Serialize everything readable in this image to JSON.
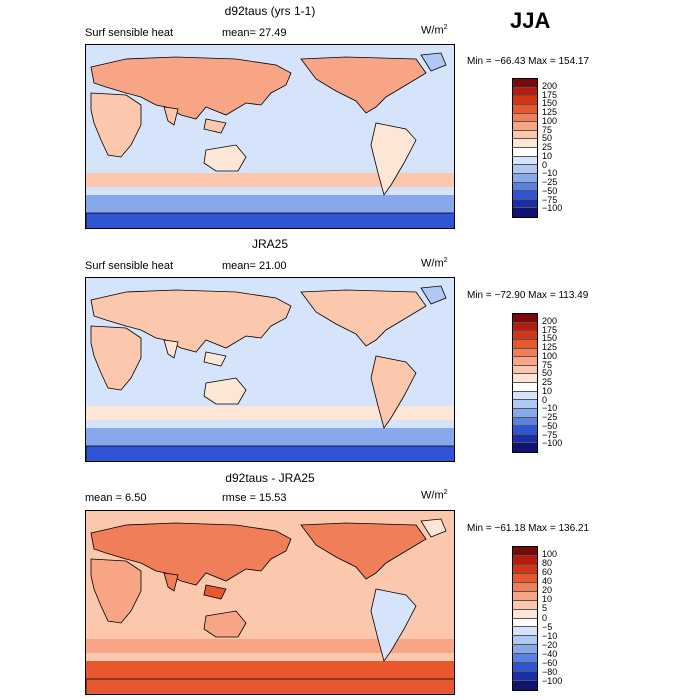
{
  "season": "JJA",
  "panels": [
    {
      "title": "d92taus (yrs 1-1)",
      "variable": "Surf sensible heat",
      "stat1": "mean=  27.49",
      "stat2": "",
      "units": "W/m",
      "units_exp": "2",
      "minmax": "Min = −66.43  Max = 154.17",
      "levels": [
        "200",
        "175",
        "150",
        "125",
        "100",
        "75",
        "50",
        "25",
        "10",
        "0",
        "−10",
        "−25",
        "−50",
        "−75",
        "−100"
      ],
      "colors": [
        "#7a0a0a",
        "#b81a0c",
        "#d53416",
        "#e8582e",
        "#f07e58",
        "#f7a585",
        "#fbc8ad",
        "#fde6d6",
        "#ffffff",
        "#d6e4fb",
        "#b0c8f2",
        "#87a8ea",
        "#5a80e0",
        "#2f55d4",
        "#1a2ea8",
        "#101470"
      ]
    },
    {
      "title": "JRA25",
      "variable": "Surf sensible heat",
      "stat1": "mean=  21.00",
      "stat2": "",
      "units": "W/m",
      "units_exp": "2",
      "minmax": "Min = −72.90  Max = 113.49",
      "levels": [
        "200",
        "175",
        "150",
        "125",
        "100",
        "75",
        "50",
        "25",
        "10",
        "0",
        "−10",
        "−25",
        "−50",
        "−75",
        "−100"
      ],
      "colors": [
        "#7a0a0a",
        "#b81a0c",
        "#d53416",
        "#e8582e",
        "#f07e58",
        "#f7a585",
        "#fbc8ad",
        "#fde6d6",
        "#ffffff",
        "#d6e4fb",
        "#b0c8f2",
        "#87a8ea",
        "#5a80e0",
        "#2f55d4",
        "#1a2ea8",
        "#101470"
      ]
    },
    {
      "title": "d92taus - JRA25",
      "variable": "",
      "stat1": "mean =   6.50",
      "stat2": "rmse =  15.53",
      "units": "W/m",
      "units_exp": "2",
      "minmax": "Min = −61.18  Max = 136.21",
      "levels": [
        "100",
        "80",
        "60",
        "40",
        "20",
        "10",
        "5",
        "0",
        "−5",
        "−10",
        "−20",
        "−40",
        "−60",
        "−80",
        "−100"
      ],
      "colors": [
        "#7a0a0a",
        "#b81a0c",
        "#d53416",
        "#e8582e",
        "#f07e58",
        "#f7a585",
        "#fbc8ad",
        "#fde6d6",
        "#ffffff",
        "#d6e4fb",
        "#b0c8f2",
        "#87a8ea",
        "#5a80e0",
        "#2f55d4",
        "#1a2ea8",
        "#101470"
      ]
    }
  ]
}
